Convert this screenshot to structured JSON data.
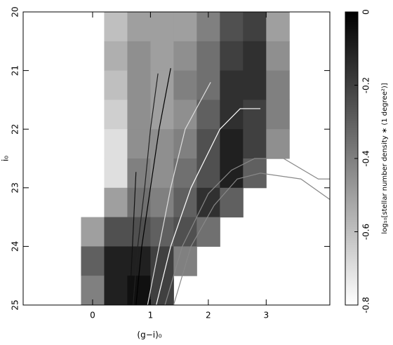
{
  "chart_data": {
    "type": "hess",
    "x_label": "(g−i)₀",
    "y_label": "i₀",
    "colorbar_label": "log₁₀[stellar number density ∗ (1 degree²)]",
    "xlim": [
      -1.2,
      4.1
    ],
    "xticks": [
      0,
      1,
      2,
      3
    ],
    "ylim": [
      25,
      20
    ],
    "yticks": [
      20,
      21,
      22,
      23,
      24,
      25
    ],
    "clim": [
      -0.8,
      0
    ],
    "cticks": [
      0,
      -0.2,
      -0.4,
      -0.6,
      -0.8
    ],
    "density": {
      "x_edges": [
        -0.2,
        0.2,
        0.6,
        1.0,
        1.4,
        1.8,
        2.2,
        2.6,
        3.0,
        3.4
      ],
      "y_edges": [
        20,
        20.5,
        21,
        21.5,
        22,
        22.5,
        23,
        23.5,
        24,
        24.5,
        25
      ],
      "values": [
        [
          null,
          -0.6,
          -0.5,
          -0.5,
          -0.5,
          -0.4,
          -0.25,
          -0.2,
          -0.5
        ],
        [
          null,
          -0.55,
          -0.45,
          -0.5,
          -0.45,
          -0.35,
          -0.2,
          -0.15,
          -0.45
        ],
        [
          null,
          -0.6,
          -0.45,
          -0.5,
          -0.4,
          -0.35,
          -0.15,
          -0.15,
          -0.4
        ],
        [
          null,
          -0.65,
          -0.45,
          -0.5,
          -0.45,
          -0.3,
          -0.15,
          -0.2,
          -0.4
        ],
        [
          null,
          -0.7,
          -0.45,
          -0.45,
          -0.4,
          -0.25,
          -0.1,
          -0.2,
          -0.45
        ],
        [
          null,
          -0.7,
          -0.4,
          -0.45,
          -0.35,
          -0.25,
          -0.1,
          -0.3,
          null
        ],
        [
          null,
          -0.5,
          -0.35,
          -0.4,
          -0.3,
          -0.15,
          -0.3,
          null,
          null
        ],
        [
          -0.5,
          -0.25,
          -0.25,
          -0.3,
          -0.25,
          -0.35,
          null,
          null,
          null
        ],
        [
          -0.3,
          -0.1,
          -0.1,
          -0.2,
          -0.4,
          null,
          null,
          null,
          null
        ],
        [
          -0.4,
          -0.1,
          -0.05,
          -0.2,
          null,
          null,
          null,
          null,
          null
        ]
      ]
    },
    "lines": [
      {
        "color": "#000000",
        "x": [
          0.75,
          0.85,
          1.0,
          1.15,
          1.35
        ],
        "y": [
          25,
          24,
          23,
          22,
          20.96
        ]
      },
      {
        "color": "#222222",
        "x": [
          0.7,
          0.78,
          0.9,
          1.0,
          1.13
        ],
        "y": [
          25,
          24,
          23,
          22,
          21.05
        ]
      },
      {
        "color": "#111111",
        "x": [
          0.65,
          0.75
        ],
        "y": [
          24.8,
          22.73
        ]
      },
      {
        "color": "#dddddd",
        "x": [
          0.95,
          1.15,
          1.35,
          1.6,
          2.04
        ],
        "y": [
          25,
          24,
          23,
          22,
          21.2
        ]
      },
      {
        "color": "#ffffff",
        "x": [
          1.1,
          1.35,
          1.7,
          2.2,
          2.55,
          2.9
        ],
        "y": [
          25,
          24,
          23,
          22,
          21.65,
          21.65
        ]
      },
      {
        "color": "#888888",
        "x": [
          1.25,
          1.55,
          2.0,
          2.4,
          2.8,
          3.3,
          3.9,
          4.1
        ],
        "y": [
          25,
          24,
          23.1,
          22.7,
          22.5,
          22.5,
          22.85,
          22.85
        ]
      },
      {
        "color": "#888888",
        "x": [
          1.4,
          1.7,
          2.1,
          2.5,
          2.9,
          3.6,
          4.1
        ],
        "y": [
          25,
          24,
          23.3,
          22.85,
          22.75,
          22.85,
          23.2
        ]
      }
    ]
  }
}
